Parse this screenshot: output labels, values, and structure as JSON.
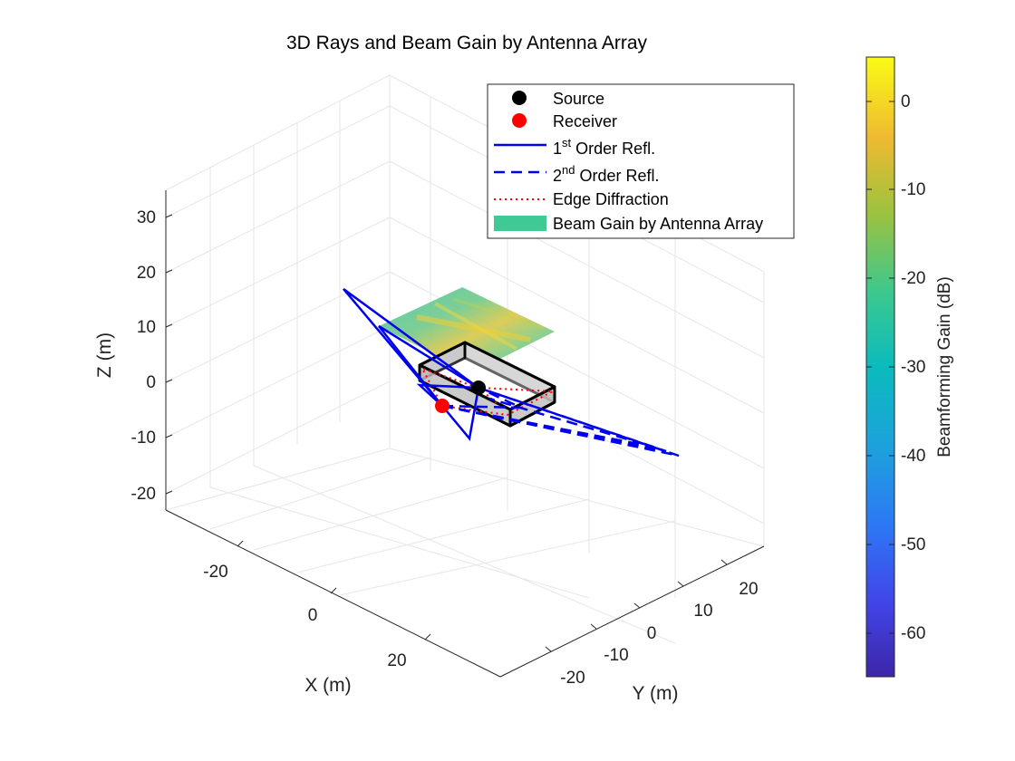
{
  "chart_data": {
    "type": "scatter3d",
    "title": "3D Rays and Beam Gain by Antenna Array",
    "xlabel": "X (m)",
    "ylabel": "Y (m)",
    "zlabel": "Z (m)",
    "xticks": [
      "-20",
      "0",
      "20"
    ],
    "yticks": [
      "-20",
      "-10",
      "0",
      "10",
      "20"
    ],
    "zticks": [
      "-20",
      "-10",
      "0",
      "10",
      "20",
      "30"
    ],
    "legend": {
      "location": "top-right",
      "entries": [
        {
          "key": "source",
          "label": "Source",
          "color": "#000000",
          "marker": "circle"
        },
        {
          "key": "receiver",
          "label": "Receiver",
          "color": "#ff0000",
          "marker": "circle"
        },
        {
          "key": "refl1",
          "prefix": "1",
          "sup": "st",
          "suffix": " Order Refl.",
          "color": "#0000ff",
          "line": "solid"
        },
        {
          "key": "refl2",
          "prefix": "2",
          "sup": "nd",
          "suffix": " Order Refl.",
          "color": "#0000ff",
          "line": "dashed"
        },
        {
          "key": "edge",
          "label": "Edge Diffraction",
          "color": "#ff0000",
          "line": "dotted"
        },
        {
          "key": "beam",
          "label": "Beam Gain by Antenna Array",
          "color": "#3ec995",
          "patch": true
        }
      ]
    },
    "colorbar": {
      "label": "Beamforming Gain (dB)",
      "ticks": [
        "0",
        "-10",
        "-20",
        "-30",
        "-40",
        "-50",
        "-60"
      ],
      "range": [
        -65,
        5
      ]
    },
    "grid": true,
    "series": [
      {
        "key": "source",
        "type": "point",
        "x": 0,
        "y": -2,
        "z": -1
      },
      {
        "key": "receiver",
        "type": "point",
        "x": 5,
        "y": -12,
        "z": -5
      }
    ]
  }
}
